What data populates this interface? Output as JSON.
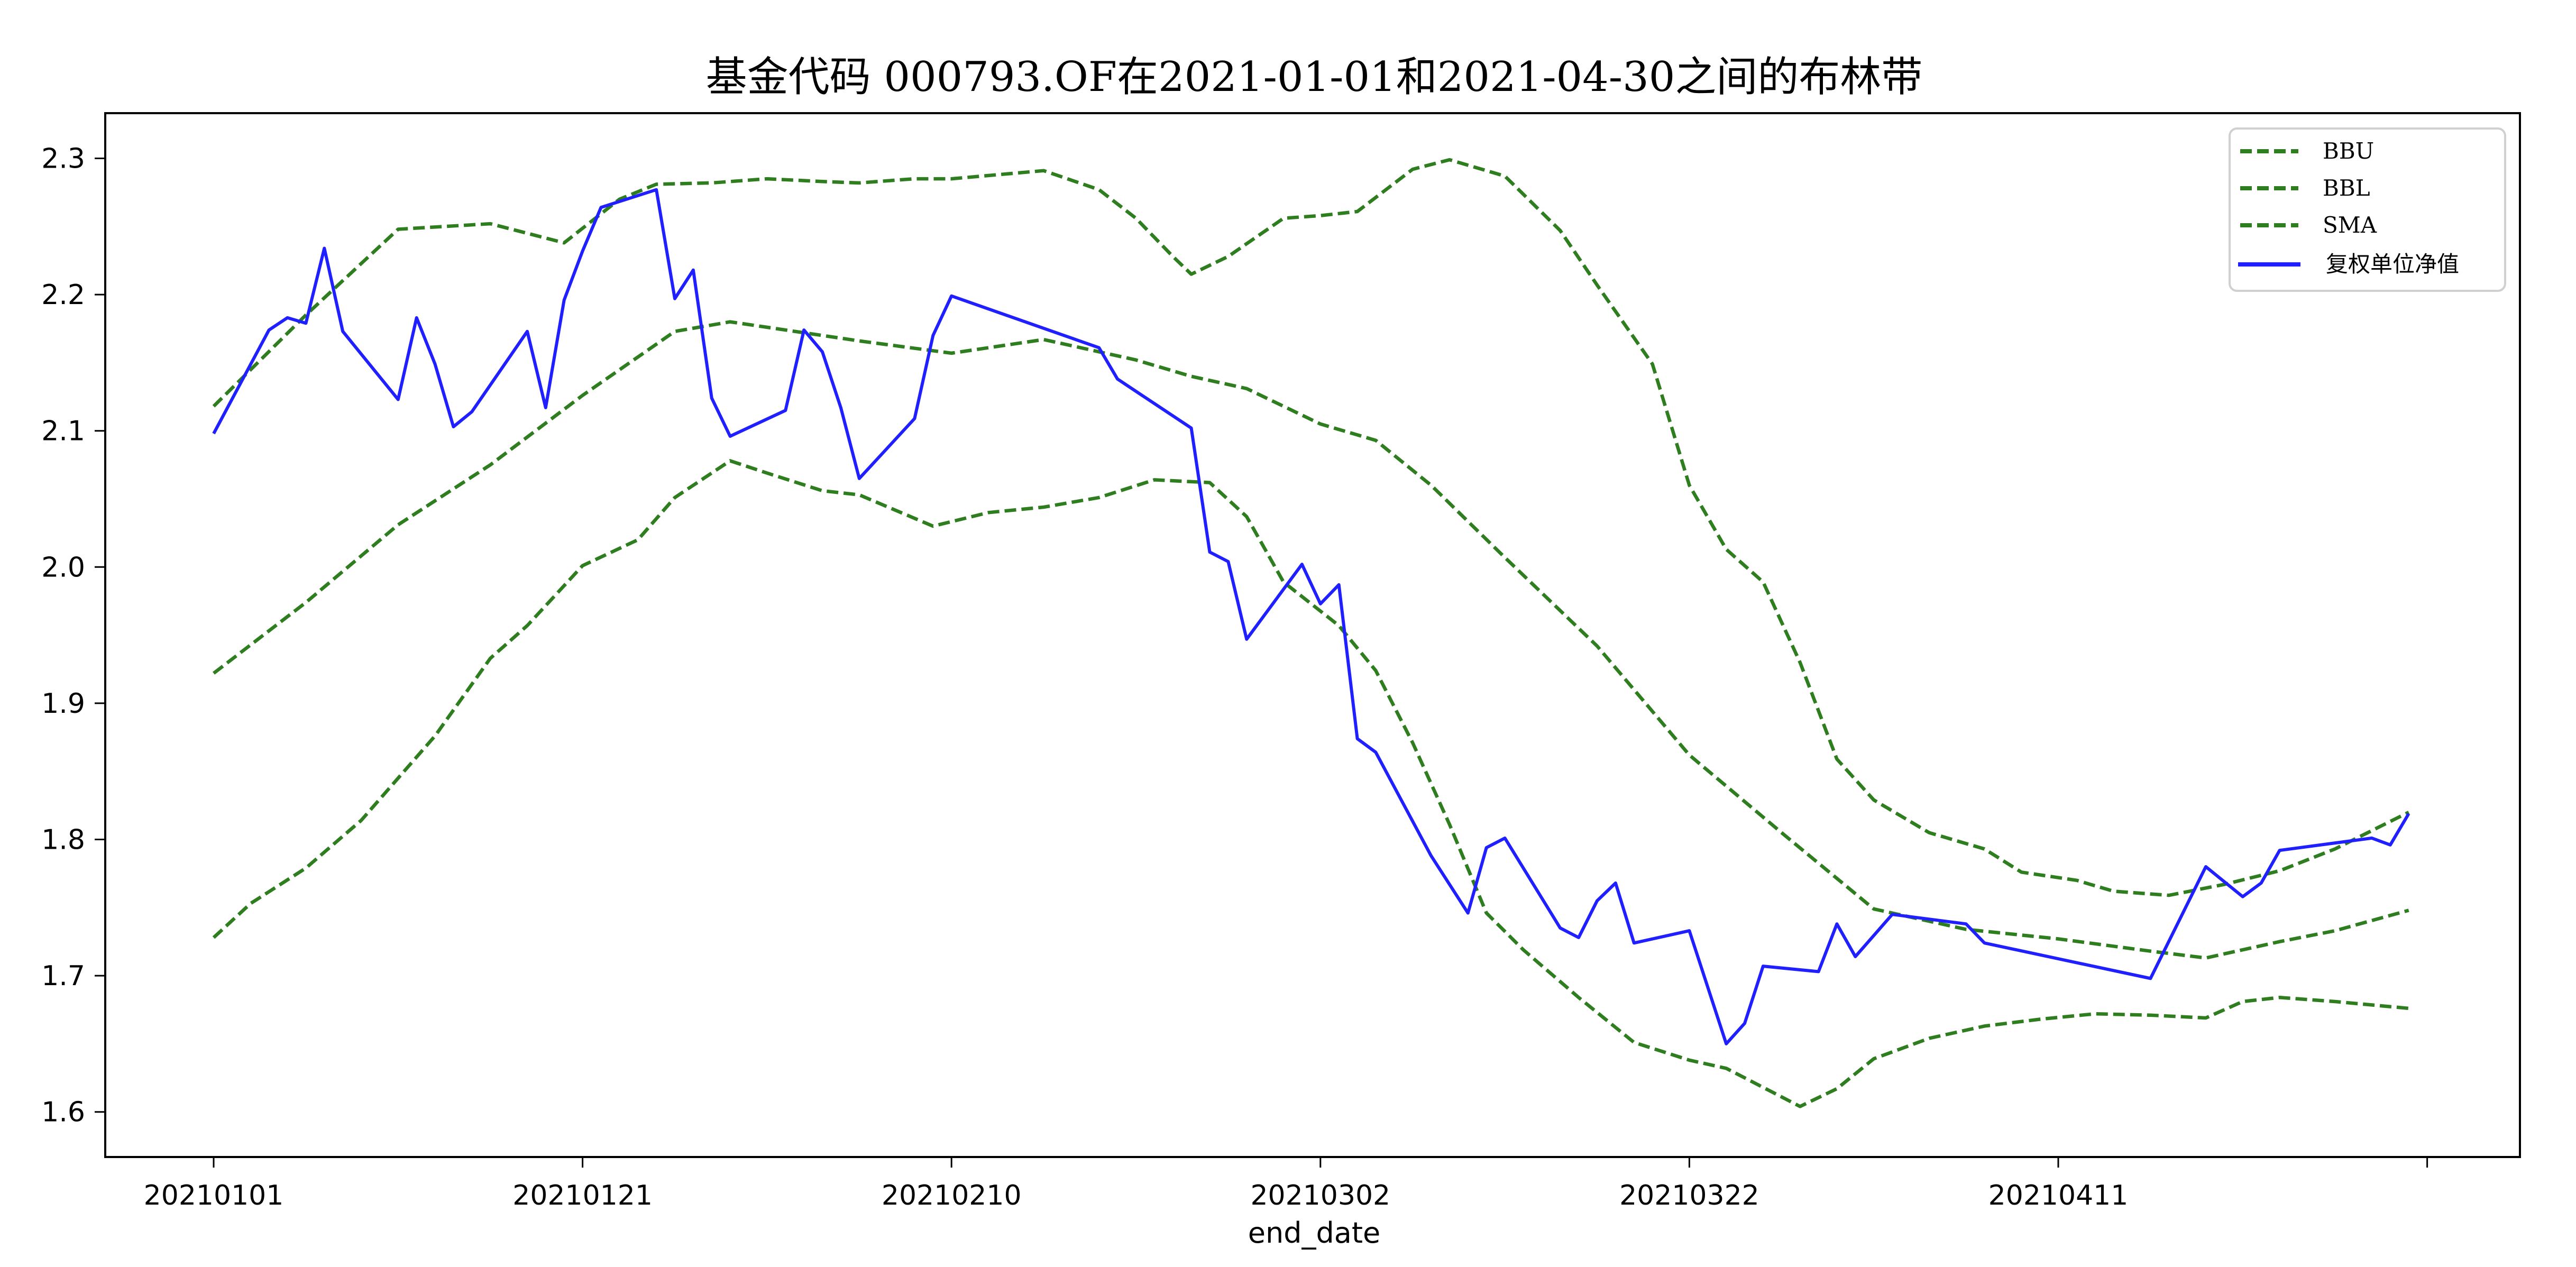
{
  "chart_data": {
    "type": "line",
    "title": "基金代码 000793.OF在2021-01-01和2021-04-30之间的布林带",
    "xlabel": "end_date",
    "ylabel": "",
    "ylim": [
      1.565,
      2.33
    ],
    "yticks": [
      "1.6",
      "1.7",
      "1.8",
      "1.9",
      "2.0",
      "2.1",
      "2.2",
      "2.3"
    ],
    "xticks": [
      "20210101",
      "20210121",
      "20210210",
      "20210302",
      "20210322",
      "20210411",
      ""
    ],
    "xtick_day_index": [
      0,
      20,
      40,
      60,
      80,
      100,
      120
    ],
    "x_domain_days": [
      0,
      119
    ],
    "grid": false,
    "legend_position": "upper right",
    "series": [
      {
        "name": "BBU",
        "style": "dashed",
        "color": "#2e7d1e",
        "points": [
          [
            0,
            2.118
          ],
          [
            5,
            2.185
          ],
          [
            10,
            2.248
          ],
          [
            15,
            2.252
          ],
          [
            19,
            2.238
          ],
          [
            22,
            2.27
          ],
          [
            24,
            2.281
          ],
          [
            27,
            2.282
          ],
          [
            30,
            2.285
          ],
          [
            33,
            2.283
          ],
          [
            35,
            2.282
          ],
          [
            38,
            2.285
          ],
          [
            40,
            2.285
          ],
          [
            45,
            2.291
          ],
          [
            48,
            2.277
          ],
          [
            50,
            2.256
          ],
          [
            52,
            2.228
          ],
          [
            53,
            2.215
          ],
          [
            55,
            2.228
          ],
          [
            58,
            2.256
          ],
          [
            60,
            2.258
          ],
          [
            62,
            2.261
          ],
          [
            65,
            2.292
          ],
          [
            67,
            2.299
          ],
          [
            70,
            2.287
          ],
          [
            73,
            2.247
          ],
          [
            75,
            2.207
          ],
          [
            78,
            2.149
          ],
          [
            80,
            2.06
          ],
          [
            82,
            2.013
          ],
          [
            84,
            1.989
          ],
          [
            86,
            1.93
          ],
          [
            88,
            1.859
          ],
          [
            90,
            1.829
          ],
          [
            93,
            1.805
          ],
          [
            96,
            1.793
          ],
          [
            98,
            1.776
          ],
          [
            101,
            1.77
          ],
          [
            103,
            1.762
          ],
          [
            106,
            1.759
          ],
          [
            109,
            1.767
          ],
          [
            112,
            1.777
          ],
          [
            115,
            1.793
          ],
          [
            119,
            1.82
          ]
        ]
      },
      {
        "name": "BBL",
        "style": "dashed",
        "color": "#2e7d1e",
        "points": [
          [
            0,
            1.728
          ],
          [
            2,
            1.753
          ],
          [
            5,
            1.779
          ],
          [
            8,
            1.814
          ],
          [
            12,
            1.876
          ],
          [
            15,
            1.933
          ],
          [
            17,
            1.957
          ],
          [
            20,
            2.001
          ],
          [
            23,
            2.02
          ],
          [
            25,
            2.051
          ],
          [
            28,
            2.078
          ],
          [
            30,
            2.069
          ],
          [
            33,
            2.056
          ],
          [
            35,
            2.053
          ],
          [
            39,
            2.03
          ],
          [
            42,
            2.04
          ],
          [
            45,
            2.044
          ],
          [
            48,
            2.051
          ],
          [
            51,
            2.064
          ],
          [
            54,
            2.062
          ],
          [
            56,
            2.037
          ],
          [
            58,
            1.989
          ],
          [
            61,
            1.957
          ],
          [
            63,
            1.924
          ],
          [
            65,
            1.871
          ],
          [
            67,
            1.811
          ],
          [
            69,
            1.746
          ],
          [
            71,
            1.719
          ],
          [
            74,
            1.684
          ],
          [
            77,
            1.651
          ],
          [
            80,
            1.638
          ],
          [
            82,
            1.632
          ],
          [
            84,
            1.618
          ],
          [
            86,
            1.604
          ],
          [
            88,
            1.617
          ],
          [
            90,
            1.639
          ],
          [
            93,
            1.654
          ],
          [
            96,
            1.663
          ],
          [
            99,
            1.668
          ],
          [
            102,
            1.672
          ],
          [
            105,
            1.671
          ],
          [
            108,
            1.669
          ],
          [
            110,
            1.681
          ],
          [
            112,
            1.684
          ],
          [
            115,
            1.681
          ],
          [
            119,
            1.676
          ]
        ]
      },
      {
        "name": "SMA",
        "style": "dashed",
        "color": "#2e7d1e",
        "points": [
          [
            0,
            1.922
          ],
          [
            5,
            1.974
          ],
          [
            10,
            2.031
          ],
          [
            15,
            2.075
          ],
          [
            20,
            2.126
          ],
          [
            25,
            2.173
          ],
          [
            28,
            2.18
          ],
          [
            30,
            2.176
          ],
          [
            35,
            2.166
          ],
          [
            40,
            2.157
          ],
          [
            45,
            2.167
          ],
          [
            50,
            2.152
          ],
          [
            53,
            2.14
          ],
          [
            56,
            2.131
          ],
          [
            60,
            2.105
          ],
          [
            63,
            2.093
          ],
          [
            66,
            2.06
          ],
          [
            70,
            2.007
          ],
          [
            75,
            1.942
          ],
          [
            80,
            1.862
          ],
          [
            85,
            1.805
          ],
          [
            90,
            1.749
          ],
          [
            95,
            1.734
          ],
          [
            100,
            1.727
          ],
          [
            105,
            1.718
          ],
          [
            108,
            1.713
          ],
          [
            112,
            1.725
          ],
          [
            115,
            1.733
          ],
          [
            119,
            1.748
          ]
        ]
      },
      {
        "name": "复权单位净值",
        "style": "solid",
        "color": "#1f1fff",
        "points": [
          [
            0,
            2.098
          ],
          [
            3,
            2.174
          ],
          [
            4,
            2.183
          ],
          [
            5,
            2.179
          ],
          [
            6,
            2.234
          ],
          [
            7,
            2.173
          ],
          [
            10,
            2.123
          ],
          [
            11,
            2.183
          ],
          [
            12,
            2.149
          ],
          [
            13,
            2.103
          ],
          [
            14,
            2.114
          ],
          [
            17,
            2.173
          ],
          [
            18,
            2.117
          ],
          [
            19,
            2.196
          ],
          [
            20,
            2.232
          ],
          [
            21,
            2.264
          ],
          [
            24,
            2.277
          ],
          [
            25,
            2.197
          ],
          [
            26,
            2.218
          ],
          [
            27,
            2.124
          ],
          [
            28,
            2.096
          ],
          [
            31,
            2.115
          ],
          [
            32,
            2.174
          ],
          [
            33,
            2.158
          ],
          [
            34,
            2.117
          ],
          [
            35,
            2.065
          ],
          [
            38,
            2.109
          ],
          [
            39,
            2.17
          ],
          [
            40,
            2.199
          ],
          [
            48,
            2.161
          ],
          [
            49,
            2.138
          ],
          [
            53,
            2.102
          ],
          [
            54,
            2.011
          ],
          [
            55,
            2.004
          ],
          [
            56,
            1.947
          ],
          [
            59,
            2.002
          ],
          [
            60,
            1.973
          ],
          [
            61,
            1.987
          ],
          [
            62,
            1.874
          ],
          [
            63,
            1.864
          ],
          [
            66,
            1.788
          ],
          [
            68,
            1.746
          ],
          [
            69,
            1.794
          ],
          [
            70,
            1.801
          ],
          [
            73,
            1.735
          ],
          [
            74,
            1.728
          ],
          [
            75,
            1.755
          ],
          [
            76,
            1.768
          ],
          [
            77,
            1.724
          ],
          [
            80,
            1.733
          ],
          [
            82,
            1.65
          ],
          [
            83,
            1.665
          ],
          [
            84,
            1.707
          ],
          [
            87,
            1.703
          ],
          [
            88,
            1.738
          ],
          [
            89,
            1.714
          ],
          [
            91,
            1.745
          ],
          [
            95,
            1.738
          ],
          [
            96,
            1.724
          ],
          [
            105,
            1.698
          ],
          [
            108,
            1.78
          ],
          [
            110,
            1.758
          ],
          [
            111,
            1.768
          ],
          [
            112,
            1.792
          ],
          [
            117,
            1.801
          ],
          [
            118,
            1.796
          ],
          [
            119,
            1.819
          ]
        ]
      }
    ]
  },
  "legend": {
    "items": [
      {
        "label": "BBU",
        "style": "dashed",
        "color": "#2e7d1e"
      },
      {
        "label": "BBL",
        "style": "dashed",
        "color": "#2e7d1e"
      },
      {
        "label": "SMA",
        "style": "dashed",
        "color": "#2e7d1e"
      },
      {
        "label": "复权单位净值",
        "style": "solid",
        "color": "#1f1fff"
      }
    ]
  },
  "colors": {
    "band": "#2e7d1e",
    "nav": "#1f1fff",
    "axis": "#000000",
    "background": "#ffffff"
  }
}
